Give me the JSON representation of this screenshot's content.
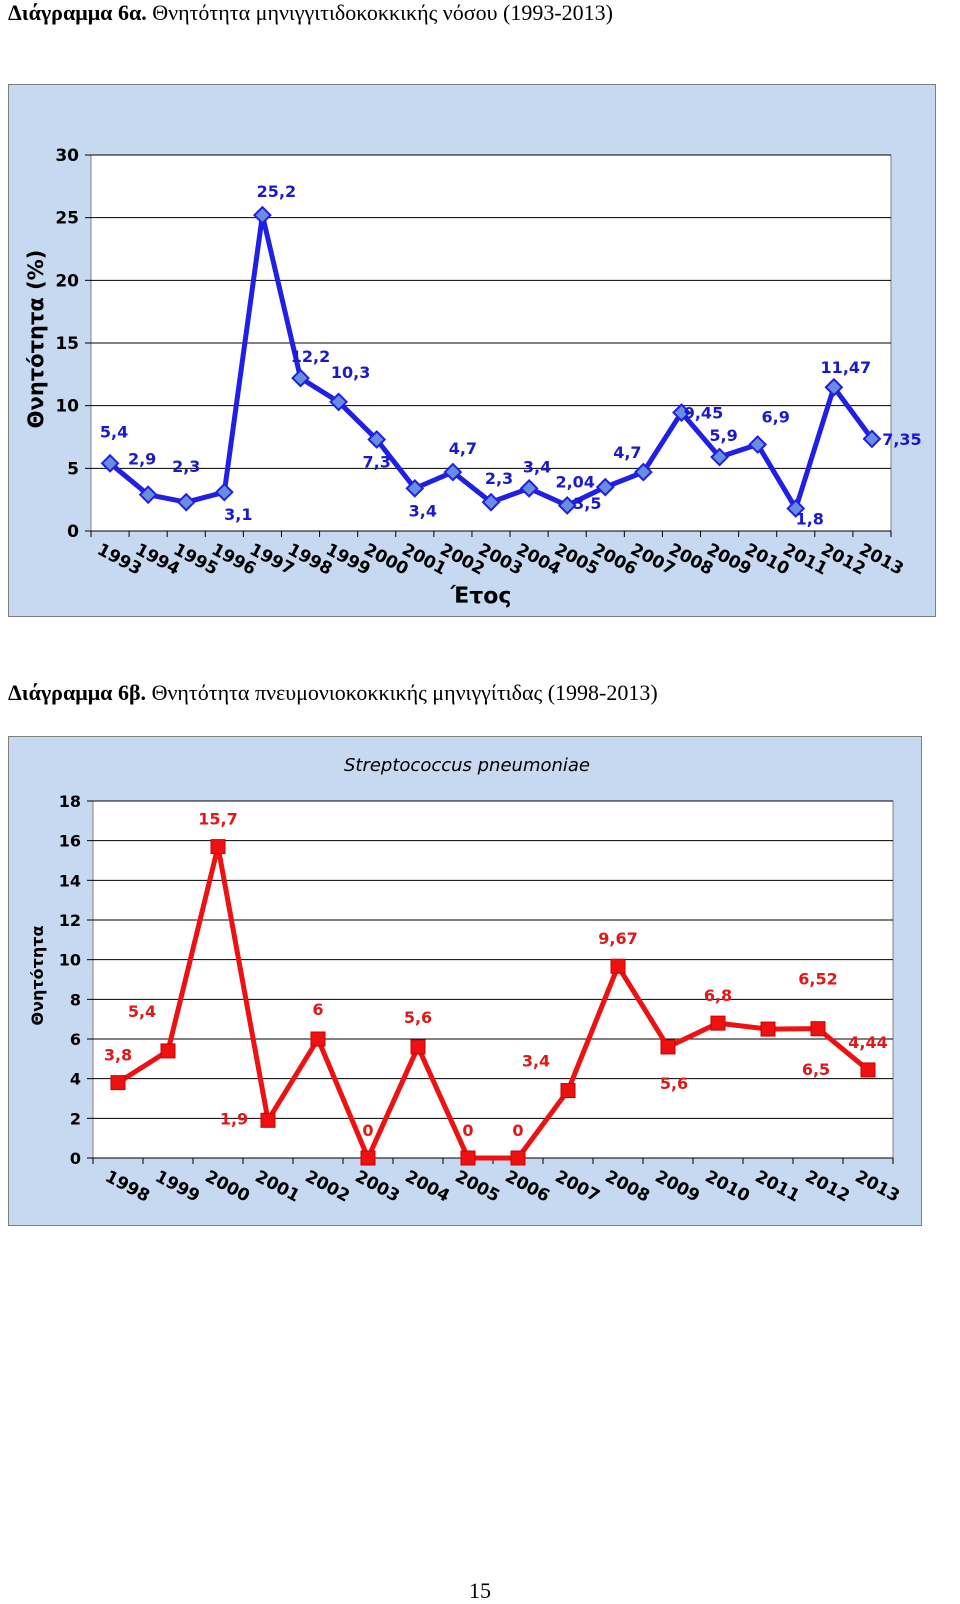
{
  "page": {
    "page_number": "15"
  },
  "charts": [
    {
      "caption_label": "Διάγραμμα 6α.",
      "caption_text": " Θνητότητα μηνιγγιτιδοκοκκικής νόσου (1993-2013)"
    },
    {
      "caption_label": "Διάγραμμα 6β.",
      "caption_text": "  Θνητότητα πνευμονιοκοκκικής μηνιγγίτιδας (1998-2013)"
    }
  ],
  "chart_data": [
    {
      "type": "line",
      "title": "",
      "xlabel": "Έτος",
      "ylabel": "Θνητότητα (%)",
      "ylim": [
        0,
        30
      ],
      "yticks": [
        0,
        5,
        10,
        15,
        20,
        25,
        30
      ],
      "grid": true,
      "categories": [
        "1993",
        "1994",
        "1995",
        "1996",
        "1997",
        "1998",
        "1999",
        "2000",
        "2001",
        "2002",
        "2003",
        "2004",
        "2005",
        "2006",
        "2007",
        "2008",
        "2009",
        "2010",
        "2011",
        "2012",
        "2013"
      ],
      "series": [
        {
          "values": [
            5.4,
            2.9,
            2.3,
            3.1,
            25.2,
            12.2,
            10.3,
            7.3,
            3.4,
            4.7,
            2.3,
            3.4,
            2.04,
            3.5,
            4.7,
            9.45,
            5.9,
            6.9,
            1.8,
            11.47,
            7.35
          ],
          "data_labels": [
            "5,4",
            "2,9",
            "2,3",
            "3,1",
            "25,2",
            "12,2",
            "10,3",
            "7,3",
            "3,4",
            "4,7",
            "2,3",
            "3,4",
            "2,04",
            "3,5",
            "4,7",
            "9,45",
            "5,9",
            "6,9",
            "1,8",
            "11,47",
            "7,35"
          ],
          "color": "#1f1fe6",
          "marker": "diamond"
        }
      ]
    },
    {
      "type": "line",
      "title": "Streptococcus pneumoniae",
      "xlabel": "",
      "ylabel": "Θνητότητα",
      "ylim": [
        0,
        18
      ],
      "yticks": [
        0,
        2,
        4,
        6,
        8,
        10,
        12,
        14,
        16,
        18
      ],
      "grid": true,
      "categories": [
        "1998",
        "1999",
        "2000",
        "2001",
        "2002",
        "2003",
        "2004",
        "2005",
        "2006",
        "2007",
        "2008",
        "2009",
        "2010",
        "2011",
        "2012",
        "2013"
      ],
      "series": [
        {
          "values": [
            3.8,
            5.4,
            15.7,
            1.9,
            6,
            0,
            5.6,
            0,
            0,
            3.4,
            9.67,
            5.6,
            6.8,
            6.5,
            6.52,
            4.44
          ],
          "data_labels": [
            "3,8",
            "5,4",
            "15,7",
            "1,9",
            "6",
            "0",
            "5,6",
            "0",
            "0",
            "3,4",
            "9,67",
            "5,6",
            "6,8",
            "6,5",
            "6,52",
            "4,44"
          ],
          "color": "#ee1111",
          "marker": "square"
        }
      ]
    }
  ]
}
